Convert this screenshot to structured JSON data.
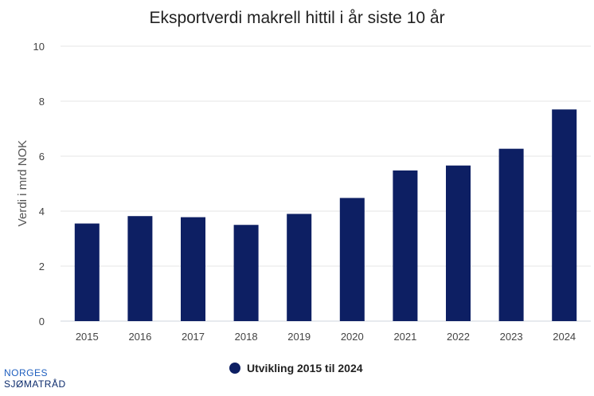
{
  "chart_data": {
    "type": "bar",
    "title": "Eksportverdi makrell hittil i år siste 10 år",
    "ylabel": "Verdi i mrd NOK",
    "xlabel": "",
    "ylim": [
      0,
      10
    ],
    "yticks": [
      "0",
      "2",
      "4",
      "6",
      "8",
      "10"
    ],
    "categories": [
      "2015",
      "2016",
      "2017",
      "2018",
      "2019",
      "2020",
      "2021",
      "2022",
      "2023",
      "2024"
    ],
    "series": [
      {
        "name": "Utvikling 2015 til 2024",
        "color": "#0d1f63",
        "values": [
          3.55,
          3.82,
          3.78,
          3.5,
          3.9,
          4.48,
          5.48,
          5.66,
          6.27,
          7.7
        ]
      }
    ],
    "grid": true,
    "legend": "bottom-center"
  },
  "logo": {
    "line1": "NORGES",
    "line2": "SJØMATRÅD"
  }
}
